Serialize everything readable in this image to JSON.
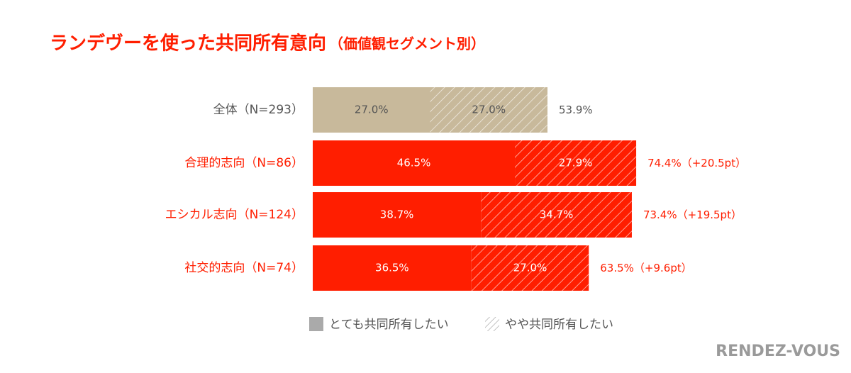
{
  "chart_data": {
    "type": "stacked-hbar",
    "title": "ランデヴーを使った共同所有意向",
    "subtitle": "（価値観セグメント別）",
    "categories": [
      "全体（N=293）",
      "合理的志向（N=86）",
      "エシカル志向（N=124）",
      "社交的志向（N=74）"
    ],
    "category_colors": [
      "#c8b99b",
      "#ff1e00",
      "#ff1e00",
      "#ff1e00"
    ],
    "label_colors": [
      "#555555",
      "#ff1e00",
      "#ff1e00",
      "#ff1e00"
    ],
    "series": [
      {
        "name": "とても共同所有したい",
        "color": "#aaaaaa",
        "pattern": "solid",
        "values": [
          27.0,
          46.5,
          38.7,
          36.5
        ],
        "value_labels": [
          "27.0%",
          "46.5%",
          "38.7%",
          "36.5%"
        ]
      },
      {
        "name": "やや共同所有したい",
        "color": "#aaaaaa",
        "pattern": "hatch",
        "values": [
          27.0,
          27.9,
          34.7,
          27.0
        ],
        "value_labels": [
          "27.0%",
          "27.9%",
          "34.7%",
          "27.0%"
        ]
      }
    ],
    "totals": [
      53.9,
      74.4,
      73.4,
      63.5
    ],
    "total_labels": [
      "53.9%",
      "74.4%",
      "73.4%",
      "63.5%"
    ],
    "diffs": [
      null,
      20.5,
      19.5,
      9.6
    ],
    "diff_labels": [
      null,
      "（+20.5pt）",
      "（+19.5pt）",
      "（+9.6pt）"
    ],
    "xlim": [
      0,
      100
    ],
    "logo": "RENDEZ-VOUS"
  }
}
